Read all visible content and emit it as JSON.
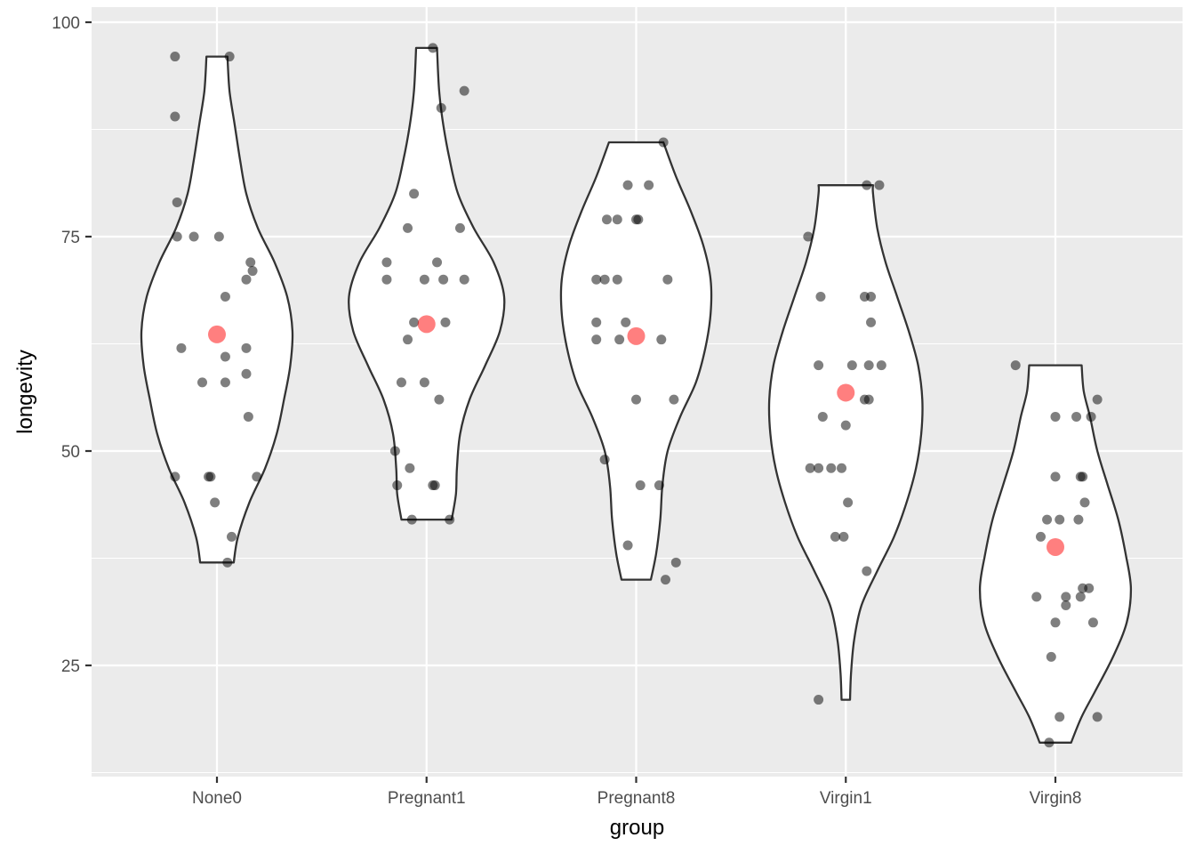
{
  "chart_data": {
    "type": "violin",
    "title": "",
    "xlabel": "group",
    "ylabel": "longevity",
    "ylim": [
      12.5,
      101
    ],
    "yticks": [
      25,
      50,
      75,
      100
    ],
    "grid": true,
    "legend": "none",
    "colors": {
      "panel": "#ebebeb",
      "grid": "#ffffff",
      "violin_fill": "#ffffff",
      "violin_stroke": "#333333",
      "point": "#000000",
      "mean_point": "#ff0000"
    },
    "categories": [
      "None0",
      "Pregnant1",
      "Pregnant8",
      "Virgin1",
      "Virgin8"
    ],
    "groups": [
      {
        "category": "None0",
        "mean": 63.6,
        "violin": [
          [
            37,
            0.16
          ],
          [
            40,
            0.2
          ],
          [
            44,
            0.31
          ],
          [
            48,
            0.46
          ],
          [
            52,
            0.57
          ],
          [
            56,
            0.64
          ],
          [
            60,
            0.7
          ],
          [
            64,
            0.72
          ],
          [
            68,
            0.67
          ],
          [
            72,
            0.55
          ],
          [
            76,
            0.39
          ],
          [
            80,
            0.28
          ],
          [
            84,
            0.22
          ],
          [
            88,
            0.17
          ],
          [
            92,
            0.12
          ],
          [
            96,
            0.1
          ]
        ],
        "points": [
          [
            -0.2,
            96
          ],
          [
            0.06,
            96
          ],
          [
            -0.2,
            89
          ],
          [
            -0.19,
            79
          ],
          [
            -0.19,
            75
          ],
          [
            -0.11,
            75
          ],
          [
            0.01,
            75
          ],
          [
            0.16,
            72
          ],
          [
            0.17,
            71
          ],
          [
            0.14,
            70
          ],
          [
            0.04,
            68
          ],
          [
            -0.17,
            62
          ],
          [
            0.14,
            62
          ],
          [
            0.04,
            61
          ],
          [
            -0.07,
            58
          ],
          [
            0.04,
            58
          ],
          [
            0.14,
            59
          ],
          [
            0.15,
            54
          ],
          [
            -0.2,
            47
          ],
          [
            -0.04,
            47
          ],
          [
            -0.03,
            47
          ],
          [
            0.19,
            47
          ],
          [
            -0.01,
            44
          ],
          [
            0.07,
            40
          ],
          [
            0.05,
            37
          ]
        ]
      },
      {
        "category": "Pregnant1",
        "mean": 64.8,
        "violin": [
          [
            42,
            0.24
          ],
          [
            45,
            0.28
          ],
          [
            48,
            0.29
          ],
          [
            52,
            0.32
          ],
          [
            56,
            0.41
          ],
          [
            60,
            0.56
          ],
          [
            64,
            0.7
          ],
          [
            68,
            0.74
          ],
          [
            72,
            0.64
          ],
          [
            76,
            0.45
          ],
          [
            80,
            0.3
          ],
          [
            84,
            0.22
          ],
          [
            88,
            0.16
          ],
          [
            92,
            0.12
          ],
          [
            97,
            0.1
          ]
        ],
        "points": [
          [
            0.03,
            97
          ],
          [
            0.18,
            92
          ],
          [
            0.07,
            90
          ],
          [
            -0.06,
            80
          ],
          [
            -0.09,
            76
          ],
          [
            0.16,
            76
          ],
          [
            -0.19,
            72
          ],
          [
            0.05,
            72
          ],
          [
            -0.19,
            70
          ],
          [
            -0.01,
            70
          ],
          [
            0.08,
            70
          ],
          [
            0.18,
            70
          ],
          [
            -0.06,
            65
          ],
          [
            0.09,
            65
          ],
          [
            -0.09,
            63
          ],
          [
            -0.12,
            58
          ],
          [
            -0.01,
            58
          ],
          [
            0.06,
            56
          ],
          [
            -0.15,
            50
          ],
          [
            -0.08,
            48
          ],
          [
            -0.14,
            46
          ],
          [
            0.03,
            46
          ],
          [
            0.04,
            46
          ],
          [
            -0.07,
            42
          ],
          [
            0.11,
            42
          ]
        ]
      },
      {
        "category": "Pregnant8",
        "mean": 63.4,
        "violin": [
          [
            35,
            0.14
          ],
          [
            38,
            0.19
          ],
          [
            42,
            0.23
          ],
          [
            46,
            0.25
          ],
          [
            50,
            0.3
          ],
          [
            54,
            0.42
          ],
          [
            58,
            0.57
          ],
          [
            62,
            0.66
          ],
          [
            66,
            0.71
          ],
          [
            70,
            0.71
          ],
          [
            74,
            0.64
          ],
          [
            78,
            0.52
          ],
          [
            82,
            0.38
          ],
          [
            86,
            0.26
          ]
        ],
        "points": [
          [
            0.13,
            86
          ],
          [
            -0.04,
            81
          ],
          [
            0.06,
            81
          ],
          [
            -0.14,
            77
          ],
          [
            -0.09,
            77
          ],
          [
            0.0,
            77
          ],
          [
            0.01,
            77
          ],
          [
            -0.19,
            70
          ],
          [
            -0.15,
            70
          ],
          [
            -0.09,
            70
          ],
          [
            0.15,
            70
          ],
          [
            -0.19,
            65
          ],
          [
            -0.05,
            65
          ],
          [
            -0.19,
            63
          ],
          [
            -0.08,
            63
          ],
          [
            0.12,
            63
          ],
          [
            0.0,
            56
          ],
          [
            0.18,
            56
          ],
          [
            -0.15,
            49
          ],
          [
            0.02,
            46
          ],
          [
            0.11,
            46
          ],
          [
            -0.04,
            39
          ],
          [
            0.19,
            37
          ],
          [
            0.14,
            35
          ]
        ]
      },
      {
        "category": "Virgin1",
        "mean": 56.8,
        "violin": [
          [
            21,
            0.04
          ],
          [
            24,
            0.05
          ],
          [
            28,
            0.08
          ],
          [
            32,
            0.15
          ],
          [
            36,
            0.3
          ],
          [
            40,
            0.46
          ],
          [
            44,
            0.58
          ],
          [
            48,
            0.67
          ],
          [
            52,
            0.72
          ],
          [
            56,
            0.73
          ],
          [
            60,
            0.69
          ],
          [
            64,
            0.6
          ],
          [
            68,
            0.49
          ],
          [
            72,
            0.38
          ],
          [
            76,
            0.3
          ],
          [
            80,
            0.26
          ],
          [
            81,
            0.26
          ]
        ],
        "points": [
          [
            -0.18,
            75
          ],
          [
            0.1,
            81
          ],
          [
            0.16,
            81
          ],
          [
            -0.12,
            68
          ],
          [
            0.09,
            68
          ],
          [
            0.12,
            68
          ],
          [
            0.12,
            65
          ],
          [
            -0.13,
            60
          ],
          [
            0.03,
            60
          ],
          [
            0.11,
            60
          ],
          [
            0.17,
            60
          ],
          [
            -0.11,
            54
          ],
          [
            0.0,
            53
          ],
          [
            0.09,
            56
          ],
          [
            0.11,
            56
          ],
          [
            -0.17,
            48
          ],
          [
            -0.13,
            48
          ],
          [
            -0.07,
            48
          ],
          [
            -0.02,
            48
          ],
          [
            0.01,
            44
          ],
          [
            -0.05,
            40
          ],
          [
            -0.01,
            40
          ],
          [
            0.1,
            36
          ],
          [
            -0.13,
            21
          ]
        ]
      },
      {
        "category": "Virgin8",
        "mean": 38.8,
        "violin": [
          [
            16,
            0.15
          ],
          [
            19,
            0.25
          ],
          [
            22,
            0.38
          ],
          [
            26,
            0.55
          ],
          [
            30,
            0.68
          ],
          [
            34,
            0.72
          ],
          [
            38,
            0.67
          ],
          [
            42,
            0.6
          ],
          [
            46,
            0.5
          ],
          [
            50,
            0.4
          ],
          [
            54,
            0.33
          ],
          [
            57,
            0.27
          ],
          [
            60,
            0.25
          ]
        ],
        "points": [
          [
            -0.19,
            60
          ],
          [
            0.2,
            56
          ],
          [
            0.0,
            54
          ],
          [
            0.1,
            54
          ],
          [
            0.17,
            54
          ],
          [
            0.0,
            47
          ],
          [
            0.12,
            47
          ],
          [
            0.13,
            47
          ],
          [
            0.14,
            44
          ],
          [
            -0.04,
            42
          ],
          [
            0.02,
            42
          ],
          [
            0.11,
            42
          ],
          [
            -0.07,
            40
          ],
          [
            0.13,
            34
          ],
          [
            0.16,
            34
          ],
          [
            -0.09,
            33
          ],
          [
            0.05,
            33
          ],
          [
            0.12,
            33
          ],
          [
            0.05,
            32
          ],
          [
            0.0,
            30
          ],
          [
            0.18,
            30
          ],
          [
            -0.02,
            26
          ],
          [
            0.02,
            19
          ],
          [
            0.2,
            19
          ],
          [
            -0.03,
            16
          ]
        ]
      }
    ]
  }
}
